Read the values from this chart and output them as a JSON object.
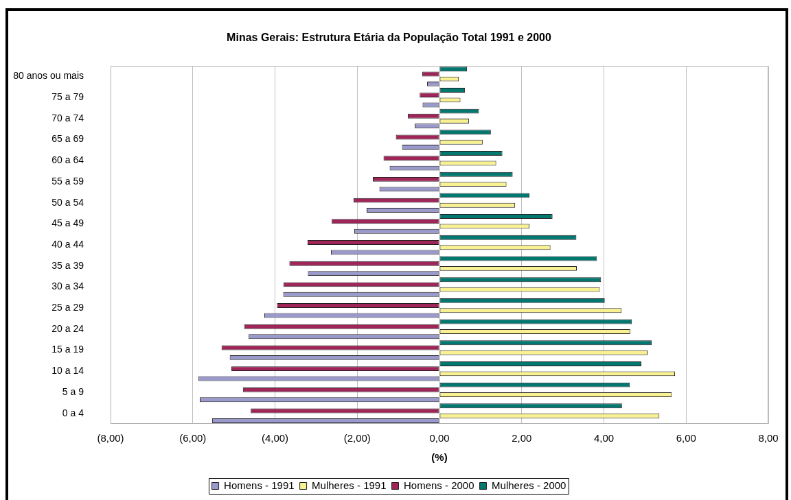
{
  "chart_data": {
    "type": "bar",
    "orientation": "horizontal",
    "title": "Minas Gerais: Estrutura Etária da População Total 1991 e 2000",
    "xlabel": "(%)",
    "categories": [
      "80 anos ou mais",
      "75 a 79",
      "70 a 74",
      "65 a 69",
      "60 a 64",
      "55 a 59",
      "50 a 54",
      "45 a 49",
      "40 a 44",
      "35 a 39",
      "30 a 34",
      "25 a 29",
      "20 a 24",
      "15 a 19",
      "10 a 14",
      "5 a 9",
      "0 a 4"
    ],
    "series": [
      {
        "name": "Homens - 1991",
        "color": "#9999cc",
        "values": [
          -0.3,
          -0.41,
          -0.6,
          -0.91,
          -1.21,
          -1.46,
          -1.77,
          -2.07,
          -2.64,
          -3.2,
          -3.8,
          -4.26,
          -4.64,
          -5.1,
          -5.86,
          -5.83,
          -5.53
        ]
      },
      {
        "name": "Mulheres - 1991",
        "color": "#f7f191",
        "values": [
          0.47,
          0.51,
          0.72,
          1.05,
          1.38,
          1.63,
          1.84,
          2.19,
          2.7,
          3.34,
          3.9,
          4.43,
          4.64,
          5.06,
          5.73,
          5.65,
          5.35
        ]
      },
      {
        "name": "Homens - 2000",
        "color": "#9f2559",
        "values": [
          -0.42,
          -0.48,
          -0.77,
          -1.06,
          -1.36,
          -1.62,
          -2.09,
          -2.62,
          -3.21,
          -3.65,
          -3.79,
          -3.95,
          -4.75,
          -5.3,
          -5.06,
          -4.78,
          -4.59
        ]
      },
      {
        "name": "Mulheres - 2000",
        "color": "#00776f",
        "values": [
          0.67,
          0.62,
          0.96,
          1.25,
          1.53,
          1.78,
          2.19,
          2.75,
          3.33,
          3.83,
          3.93,
          4.02,
          4.68,
          5.16,
          4.91,
          4.63,
          4.44
        ]
      }
    ],
    "xlim": [
      -8,
      8
    ],
    "xticks": [
      {
        "value": -8,
        "label": "(8,00)"
      },
      {
        "value": -6,
        "label": "(6,00)"
      },
      {
        "value": -4,
        "label": "(4,00)"
      },
      {
        "value": -2,
        "label": "(2,00)"
      },
      {
        "value": 0,
        "label": "0,00"
      },
      {
        "value": 2,
        "label": "2,00"
      },
      {
        "value": 4,
        "label": "4,00"
      },
      {
        "value": 6,
        "label": "6,00"
      },
      {
        "value": 8,
        "label": "8,00"
      }
    ],
    "grid": "x",
    "legend": "bottom"
  }
}
